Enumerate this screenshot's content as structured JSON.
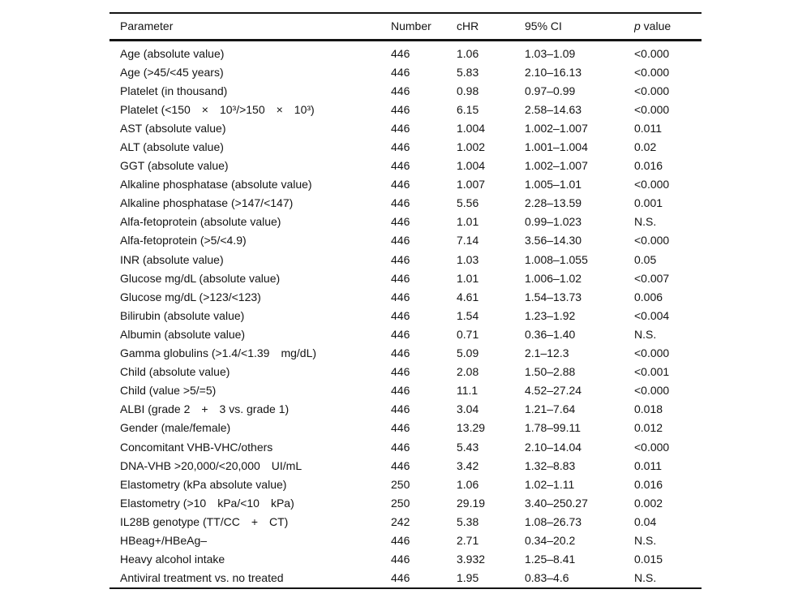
{
  "table": {
    "columns": [
      "Parameter",
      "Number",
      "cHR",
      "95% CI",
      "p value"
    ],
    "p_header": {
      "italic": "p",
      "rest": " value"
    },
    "rows": [
      [
        "Age (absolute value)",
        "446",
        "1.06",
        "1.03–1.09",
        "<0.000"
      ],
      [
        "Age (>45/<45 years)",
        "446",
        "5.83",
        "2.10–16.13",
        "<0.000"
      ],
      [
        "Platelet (in thousand)",
        "446",
        "0.98",
        "0.97–0.99",
        "<0.000"
      ],
      [
        "Platelet (<150  ×  10³/>150  ×  10³)",
        "446",
        "6.15",
        "2.58–14.63",
        "<0.000"
      ],
      [
        "AST (absolute value)",
        "446",
        "1.004",
        "1.002–1.007",
        "0.011"
      ],
      [
        "ALT (absolute value)",
        "446",
        "1.002",
        "1.001–1.004",
        "0.02"
      ],
      [
        "GGT (absolute value)",
        "446",
        "1.004",
        "1.002–1.007",
        "0.016"
      ],
      [
        "Alkaline phosphatase (absolute value)",
        "446",
        "1.007",
        "1.005–1.01",
        "<0.000"
      ],
      [
        "Alkaline phosphatase (>147/<147)",
        "446",
        "5.56",
        "2.28–13.59",
        "0.001"
      ],
      [
        "Alfa-fetoprotein (absolute value)",
        "446",
        "1.01",
        "0.99–1.023",
        "N.S."
      ],
      [
        "Alfa-fetoprotein (>5/<4.9)",
        "446",
        "7.14",
        "3.56–14.30",
        "<0.000"
      ],
      [
        "INR (absolute value)",
        "446",
        "1.03",
        "1.008–1.055",
        "0.05"
      ],
      [
        "Glucose mg/dL (absolute value)",
        "446",
        "1.01",
        "1.006–1.02",
        "<0.007"
      ],
      [
        "Glucose mg/dL (>123/<123)",
        "446",
        "4.61",
        "1.54–13.73",
        "0.006"
      ],
      [
        "Bilirubin (absolute value)",
        "446",
        "1.54",
        "1.23–1.92",
        "<0.004"
      ],
      [
        "Albumin (absolute value)",
        "446",
        "0.71",
        "0.36–1.40",
        "N.S."
      ],
      [
        "Gamma globulins (>1.4/<1.39  mg/dL)",
        "446",
        "5.09",
        "2.1–12.3",
        "<0.000"
      ],
      [
        "Child (absolute value)",
        "446",
        "2.08",
        "1.50–2.88",
        "<0.001"
      ],
      [
        "Child (value >5/=5)",
        "446",
        "11.1",
        "4.52–27.24",
        "<0.000"
      ],
      [
        "ALBI (grade 2  +  3 vs. grade 1)",
        "446",
        "3.04",
        "1.21–7.64",
        "0.018"
      ],
      [
        "Gender (male/female)",
        "446",
        "13.29",
        "1.78–99.11",
        "0.012"
      ],
      [
        "Concomitant VHB-VHC/others",
        "446",
        "5.43",
        "2.10–14.04",
        "<0.000"
      ],
      [
        "DNA-VHB >20,000/<20,000  UI/mL",
        "446",
        "3.42",
        "1.32–8.83",
        "0.011"
      ],
      [
        "Elastometry (kPa absolute value)",
        "250",
        "1.06",
        "1.02–1.11",
        "0.016"
      ],
      [
        "Elastometry (>10  kPa/<10  kPa)",
        "250",
        "29.19",
        "3.40–250.27",
        "0.002"
      ],
      [
        "IL28B genotype (TT/CC  +  CT)",
        "242",
        "5.38",
        "1.08–26.73",
        "0.04"
      ],
      [
        "HBeag+/HBeAg–",
        "446",
        "2.71",
        "0.34–20.2",
        "N.S."
      ],
      [
        "Heavy alcohol intake",
        "446",
        "3.932",
        "1.25–8.41",
        "0.015"
      ],
      [
        "Antiviral treatment vs. no treated",
        "446",
        "1.95",
        "0.83–4.6",
        "N.S."
      ]
    ]
  }
}
